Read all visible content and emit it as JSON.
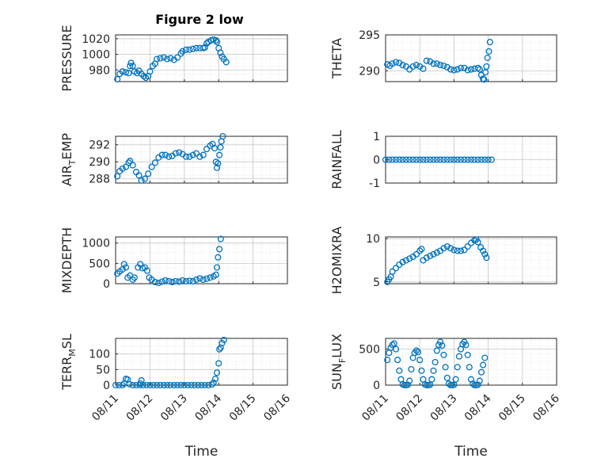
{
  "figure": {
    "title": "Figure 2 low"
  },
  "colors": {
    "marker": "#0072BD",
    "axis": "#262626",
    "grid": "#d9d9d9"
  },
  "chart_data": [
    {
      "type": "scatter",
      "ylabel": "PRESSURE",
      "xlabel": "",
      "title": "Figure 2 low",
      "xlim": [
        0,
        5
      ],
      "ylim": [
        965,
        1025
      ],
      "yticks": [
        980,
        1000,
        1020
      ],
      "xticklabels": [],
      "grid": true,
      "points": [
        [
          0.05,
          968
        ],
        [
          0.12,
          975
        ],
        [
          0.2,
          978
        ],
        [
          0.3,
          977
        ],
        [
          0.38,
          976
        ],
        [
          0.42,
          985
        ],
        [
          0.45,
          989
        ],
        [
          0.5,
          985
        ],
        [
          0.55,
          978
        ],
        [
          0.62,
          976
        ],
        [
          0.68,
          979
        ],
        [
          0.75,
          975
        ],
        [
          0.82,
          972
        ],
        [
          0.88,
          970
        ],
        [
          0.95,
          972
        ],
        [
          1.0,
          978
        ],
        [
          1.08,
          985
        ],
        [
          1.15,
          988
        ],
        [
          1.2,
          994
        ],
        [
          1.3,
          995
        ],
        [
          1.4,
          996
        ],
        [
          1.5,
          994
        ],
        [
          1.6,
          995
        ],
        [
          1.7,
          993
        ],
        [
          1.8,
          996
        ],
        [
          1.9,
          1001
        ],
        [
          1.95,
          1004
        ],
        [
          2.05,
          1006
        ],
        [
          2.15,
          1006
        ],
        [
          2.25,
          1007
        ],
        [
          2.35,
          1008
        ],
        [
          2.45,
          1008
        ],
        [
          2.55,
          1008
        ],
        [
          2.6,
          1009
        ],
        [
          2.65,
          1014
        ],
        [
          2.7,
          1016
        ],
        [
          2.78,
          1018
        ],
        [
          2.85,
          1019
        ],
        [
          2.92,
          1018
        ],
        [
          2.95,
          1016
        ],
        [
          3.0,
          1008
        ],
        [
          3.05,
          1002
        ],
        [
          3.1,
          997
        ],
        [
          3.15,
          994
        ],
        [
          3.22,
          990
        ]
      ]
    },
    {
      "type": "scatter",
      "ylabel": "THETA",
      "xlabel": "",
      "xlim": [
        0,
        5
      ],
      "ylim": [
        288.5,
        295
      ],
      "yticks": [
        290,
        295
      ],
      "xticklabels": [],
      "grid": true,
      "points": [
        [
          0.05,
          290.9
        ],
        [
          0.12,
          290.7
        ],
        [
          0.2,
          291.0
        ],
        [
          0.3,
          291.2
        ],
        [
          0.4,
          291.1
        ],
        [
          0.5,
          290.8
        ],
        [
          0.6,
          290.6
        ],
        [
          0.7,
          290.2
        ],
        [
          0.8,
          290.6
        ],
        [
          0.9,
          290.8
        ],
        [
          1.0,
          290.6
        ],
        [
          1.1,
          290.3
        ],
        [
          1.2,
          291.4
        ],
        [
          1.3,
          291.3
        ],
        [
          1.4,
          291.0
        ],
        [
          1.5,
          291.0
        ],
        [
          1.6,
          290.8
        ],
        [
          1.7,
          290.7
        ],
        [
          1.8,
          290.5
        ],
        [
          1.9,
          290.2
        ],
        [
          2.0,
          290.1
        ],
        [
          2.1,
          290.2
        ],
        [
          2.2,
          290.4
        ],
        [
          2.3,
          290.4
        ],
        [
          2.4,
          290.1
        ],
        [
          2.5,
          290.2
        ],
        [
          2.6,
          290.3
        ],
        [
          2.7,
          290.4
        ],
        [
          2.75,
          290.2
        ],
        [
          2.8,
          289.4
        ],
        [
          2.85,
          288.9
        ],
        [
          2.88,
          288.8
        ],
        [
          2.92,
          289.8
        ],
        [
          2.95,
          290.6
        ],
        [
          2.98,
          291.8
        ],
        [
          3.02,
          292.7
        ],
        [
          3.05,
          294.0
        ]
      ]
    },
    {
      "type": "scatter",
      "ylabel": "AIR_TEMP",
      "xlabel": "",
      "xlim": [
        0,
        5
      ],
      "ylim": [
        287.5,
        293
      ],
      "yticks": [
        288,
        290,
        292
      ],
      "xticklabels": [],
      "grid": true,
      "points": [
        [
          0.05,
          288.3
        ],
        [
          0.12,
          288.9
        ],
        [
          0.2,
          289.2
        ],
        [
          0.3,
          289.4
        ],
        [
          0.38,
          289.9
        ],
        [
          0.42,
          290.1
        ],
        [
          0.5,
          289.6
        ],
        [
          0.6,
          288.8
        ],
        [
          0.68,
          288.4
        ],
        [
          0.75,
          287.8
        ],
        [
          0.85,
          288.0
        ],
        [
          0.95,
          288.6
        ],
        [
          1.05,
          289.4
        ],
        [
          1.15,
          289.9
        ],
        [
          1.25,
          290.5
        ],
        [
          1.35,
          290.8
        ],
        [
          1.45,
          290.8
        ],
        [
          1.55,
          290.6
        ],
        [
          1.65,
          290.7
        ],
        [
          1.75,
          291.0
        ],
        [
          1.85,
          291.1
        ],
        [
          1.95,
          290.9
        ],
        [
          2.05,
          290.6
        ],
        [
          2.15,
          290.6
        ],
        [
          2.25,
          290.8
        ],
        [
          2.35,
          291.0
        ],
        [
          2.45,
          290.6
        ],
        [
          2.55,
          290.8
        ],
        [
          2.65,
          291.5
        ],
        [
          2.75,
          291.9
        ],
        [
          2.82,
          292.1
        ],
        [
          2.88,
          291.6
        ],
        [
          2.92,
          290.0
        ],
        [
          2.95,
          289.3
        ],
        [
          2.98,
          289.8
        ],
        [
          3.02,
          290.8
        ],
        [
          3.05,
          291.7
        ],
        [
          3.08,
          292.4
        ],
        [
          3.12,
          293.0
        ]
      ]
    },
    {
      "type": "scatter",
      "ylabel": "RAINFALL",
      "xlabel": "",
      "xlim": [
        0,
        5
      ],
      "ylim": [
        -1,
        1
      ],
      "yticks": [
        -1,
        0,
        1
      ],
      "xticklabels": [],
      "grid": true,
      "points": [
        [
          0.0,
          0
        ],
        [
          0.1,
          0
        ],
        [
          0.2,
          0
        ],
        [
          0.3,
          0
        ],
        [
          0.4,
          0
        ],
        [
          0.5,
          0
        ],
        [
          0.6,
          0
        ],
        [
          0.7,
          0
        ],
        [
          0.8,
          0
        ],
        [
          0.9,
          0
        ],
        [
          1.0,
          0
        ],
        [
          1.1,
          0
        ],
        [
          1.2,
          0
        ],
        [
          1.3,
          0
        ],
        [
          1.4,
          0
        ],
        [
          1.5,
          0
        ],
        [
          1.6,
          0
        ],
        [
          1.7,
          0
        ],
        [
          1.8,
          0
        ],
        [
          1.9,
          0
        ],
        [
          2.0,
          0
        ],
        [
          2.1,
          0
        ],
        [
          2.2,
          0
        ],
        [
          2.3,
          0
        ],
        [
          2.4,
          0
        ],
        [
          2.5,
          0
        ],
        [
          2.6,
          0
        ],
        [
          2.7,
          0
        ],
        [
          2.8,
          0
        ],
        [
          2.9,
          0
        ],
        [
          3.0,
          0
        ],
        [
          3.1,
          0
        ]
      ]
    },
    {
      "type": "scatter",
      "ylabel": "MIXDEPTH",
      "xlabel": "",
      "xlim": [
        0,
        5
      ],
      "ylim": [
        0,
        1150
      ],
      "yticks": [
        0,
        500,
        1000
      ],
      "xticklabels": [],
      "grid": true,
      "points": [
        [
          0.05,
          250
        ],
        [
          0.12,
          300
        ],
        [
          0.2,
          350
        ],
        [
          0.25,
          480
        ],
        [
          0.3,
          400
        ],
        [
          0.35,
          150
        ],
        [
          0.42,
          200
        ],
        [
          0.5,
          100
        ],
        [
          0.55,
          150
        ],
        [
          0.65,
          400
        ],
        [
          0.72,
          480
        ],
        [
          0.78,
          380
        ],
        [
          0.85,
          400
        ],
        [
          0.92,
          320
        ],
        [
          0.98,
          150
        ],
        [
          1.05,
          100
        ],
        [
          1.15,
          40
        ],
        [
          1.25,
          20
        ],
        [
          1.35,
          50
        ],
        [
          1.45,
          80
        ],
        [
          1.55,
          60
        ],
        [
          1.65,
          40
        ],
        [
          1.75,
          60
        ],
        [
          1.85,
          50
        ],
        [
          1.95,
          80
        ],
        [
          2.05,
          60
        ],
        [
          2.15,
          70
        ],
        [
          2.25,
          60
        ],
        [
          2.35,
          100
        ],
        [
          2.45,
          130
        ],
        [
          2.55,
          100
        ],
        [
          2.65,
          120
        ],
        [
          2.75,
          150
        ],
        [
          2.85,
          180
        ],
        [
          2.92,
          220
        ],
        [
          2.95,
          400
        ],
        [
          2.98,
          650
        ],
        [
          3.02,
          850
        ],
        [
          3.06,
          1100
        ]
      ]
    },
    {
      "type": "scatter",
      "ylabel": "H2OMIXRA",
      "xlabel": "",
      "xlim": [
        0,
        5
      ],
      "ylim": [
        4.8,
        10.2
      ],
      "yticks": [
        5,
        10
      ],
      "xticklabels": [],
      "grid": true,
      "points": [
        [
          0.05,
          5.0
        ],
        [
          0.1,
          5.3
        ],
        [
          0.15,
          5.6
        ],
        [
          0.2,
          6.2
        ],
        [
          0.3,
          6.6
        ],
        [
          0.4,
          7.0
        ],
        [
          0.5,
          7.3
        ],
        [
          0.6,
          7.5
        ],
        [
          0.7,
          7.7
        ],
        [
          0.8,
          7.9
        ],
        [
          0.9,
          8.2
        ],
        [
          1.0,
          8.6
        ],
        [
          1.05,
          8.8
        ],
        [
          1.1,
          7.5
        ],
        [
          1.2,
          7.8
        ],
        [
          1.3,
          8.0
        ],
        [
          1.4,
          8.2
        ],
        [
          1.5,
          8.4
        ],
        [
          1.6,
          8.6
        ],
        [
          1.7,
          8.9
        ],
        [
          1.8,
          9.1
        ],
        [
          1.9,
          8.9
        ],
        [
          2.0,
          8.7
        ],
        [
          2.1,
          8.6
        ],
        [
          2.2,
          8.6
        ],
        [
          2.3,
          8.7
        ],
        [
          2.4,
          9.1
        ],
        [
          2.5,
          9.5
        ],
        [
          2.6,
          9.8
        ],
        [
          2.65,
          9.9
        ],
        [
          2.7,
          9.6
        ],
        [
          2.78,
          9.0
        ],
        [
          2.85,
          8.6
        ],
        [
          2.9,
          8.2
        ],
        [
          2.95,
          7.8
        ]
      ]
    },
    {
      "type": "scatter",
      "ylabel": "TERR_MSL",
      "xlabel": "Time",
      "xlim": [
        0,
        5
      ],
      "ylim": [
        0,
        150
      ],
      "yticks": [
        0,
        50,
        100
      ],
      "xticklabels": [
        "08/11",
        "08/12",
        "08/13",
        "08/14",
        "08/15",
        "08/16"
      ],
      "grid": true,
      "points": [
        [
          0.0,
          0
        ],
        [
          0.1,
          0
        ],
        [
          0.2,
          0
        ],
        [
          0.25,
          5
        ],
        [
          0.3,
          20
        ],
        [
          0.35,
          18
        ],
        [
          0.4,
          3
        ],
        [
          0.5,
          0
        ],
        [
          0.6,
          0
        ],
        [
          0.7,
          0
        ],
        [
          0.72,
          5
        ],
        [
          0.75,
          15
        ],
        [
          0.8,
          0
        ],
        [
          0.9,
          0
        ],
        [
          1.0,
          0
        ],
        [
          1.1,
          0
        ],
        [
          1.2,
          0
        ],
        [
          1.3,
          0
        ],
        [
          1.4,
          0
        ],
        [
          1.5,
          0
        ],
        [
          1.6,
          0
        ],
        [
          1.7,
          0
        ],
        [
          1.8,
          0
        ],
        [
          1.9,
          0
        ],
        [
          2.0,
          0
        ],
        [
          2.1,
          0
        ],
        [
          2.2,
          0
        ],
        [
          2.3,
          0
        ],
        [
          2.4,
          0
        ],
        [
          2.5,
          0
        ],
        [
          2.6,
          0
        ],
        [
          2.7,
          0
        ],
        [
          2.8,
          2
        ],
        [
          2.85,
          8
        ],
        [
          2.9,
          20
        ],
        [
          2.95,
          40
        ],
        [
          3.0,
          70
        ],
        [
          3.02,
          115
        ],
        [
          3.06,
          120
        ],
        [
          3.1,
          135
        ],
        [
          3.15,
          145
        ]
      ]
    },
    {
      "type": "scatter",
      "ylabel": "SUN_FLUX",
      "xlabel": "Time",
      "xlim": [
        0,
        5
      ],
      "ylim": [
        0,
        650
      ],
      "yticks": [
        0,
        500
      ],
      "xticklabels": [
        "08/11",
        "08/12",
        "08/13",
        "08/14",
        "08/15",
        "08/16"
      ],
      "grid": true,
      "points": [
        [
          0.05,
          350
        ],
        [
          0.1,
          450
        ],
        [
          0.15,
          520
        ],
        [
          0.2,
          560
        ],
        [
          0.25,
          580
        ],
        [
          0.3,
          500
        ],
        [
          0.35,
          350
        ],
        [
          0.4,
          200
        ],
        [
          0.45,
          80
        ],
        [
          0.5,
          10
        ],
        [
          0.55,
          0
        ],
        [
          0.6,
          0
        ],
        [
          0.65,
          5
        ],
        [
          0.7,
          60
        ],
        [
          0.75,
          220
        ],
        [
          0.8,
          380
        ],
        [
          0.85,
          450
        ],
        [
          0.9,
          480
        ],
        [
          0.95,
          460
        ],
        [
          1.0,
          350
        ],
        [
          1.05,
          200
        ],
        [
          1.1,
          80
        ],
        [
          1.15,
          10
        ],
        [
          1.2,
          0
        ],
        [
          1.25,
          0
        ],
        [
          1.3,
          5
        ],
        [
          1.35,
          80
        ],
        [
          1.4,
          200
        ],
        [
          1.45,
          320
        ],
        [
          1.5,
          480
        ],
        [
          1.55,
          560
        ],
        [
          1.6,
          600
        ],
        [
          1.65,
          550
        ],
        [
          1.7,
          420
        ],
        [
          1.75,
          250
        ],
        [
          1.8,
          100
        ],
        [
          1.85,
          20
        ],
        [
          1.9,
          0
        ],
        [
          1.95,
          0
        ],
        [
          2.0,
          5
        ],
        [
          2.05,
          80
        ],
        [
          2.1,
          250
        ],
        [
          2.15,
          400
        ],
        [
          2.2,
          500
        ],
        [
          2.25,
          570
        ],
        [
          2.3,
          600
        ],
        [
          2.35,
          560
        ],
        [
          2.4,
          420
        ],
        [
          2.45,
          250
        ],
        [
          2.5,
          80
        ],
        [
          2.55,
          20
        ],
        [
          2.6,
          0
        ],
        [
          2.65,
          0
        ],
        [
          2.7,
          5
        ],
        [
          2.75,
          60
        ],
        [
          2.8,
          180
        ],
        [
          2.85,
          280
        ],
        [
          2.9,
          380
        ]
      ]
    }
  ]
}
